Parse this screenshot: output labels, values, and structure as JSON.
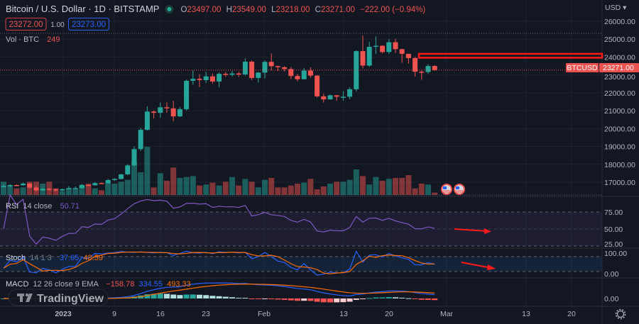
{
  "header": {
    "symbol_title": "Bitcoin / U.S. Dollar · 1D · BITSTAMP",
    "ohlc": {
      "o_label": "O",
      "o": "23497.00",
      "h_label": "H",
      "h": "23549.00",
      "l_label": "L",
      "l": "23218.00",
      "c_label": "C",
      "c": "23271.00",
      "change": "−222.00 (−0.94%)"
    },
    "sell_price": "23272.00",
    "spread": "1.00",
    "buy_price": "23273.00",
    "volume_label": "Vol · BTC",
    "volume_value": "249"
  },
  "price_axis": {
    "currency": "USD ▾",
    "ticks": [
      "26000.00",
      "25000.00",
      "24000.00",
      "23000.00",
      "22000.00",
      "21000.00",
      "20000.00",
      "19000.00",
      "18000.00",
      "17000.00"
    ],
    "symbol_tag": "BTCUSD",
    "last_price_tag": "23271.00"
  },
  "rsi": {
    "label": "RSI",
    "params": "14 close",
    "value": "50.71",
    "ticks": [
      "75.00",
      "50.00",
      "25.00"
    ]
  },
  "stoch": {
    "label": "Stoch",
    "params": "14 1 3",
    "k": "37.65",
    "d": "48.59",
    "ticks": [
      "100.00",
      "0.00"
    ]
  },
  "macd": {
    "label": "MACD",
    "params": "12 26 close 9 EMA",
    "hist": "−158.78",
    "macd": "334.55",
    "signal": "493.33",
    "ticks": [
      "0.00"
    ]
  },
  "watermark": "TradingView",
  "time_axis": [
    "2023",
    "9",
    "16",
    "23",
    "Feb",
    "13",
    "20",
    "Mar",
    "13",
    "20"
  ],
  "colors": {
    "bg": "#131722",
    "up": "#26a69a",
    "down": "#ef5350",
    "annotation": "#ff1a1a",
    "rsi": "#7e57c2",
    "stoch_k": "#2962ff",
    "stoch_d": "#ff6d00"
  },
  "chart_data": {
    "type": "candlestick",
    "start_date": "2022-12-23",
    "first_open": 16760,
    "close": [
      16780,
      16840,
      16830,
      16920,
      16700,
      16540,
      16630,
      16600,
      16540,
      16610,
      16670,
      16670,
      16850,
      16830,
      16950,
      16940,
      17120,
      17180,
      17440,
      17940,
      18850,
      19930,
      20950,
      20880,
      21190,
      21130,
      20680,
      21080,
      22670,
      22780,
      22710,
      22920,
      22630,
      23060,
      23010,
      23080,
      23030,
      23740,
      22830,
      23130,
      23730,
      23490,
      23430,
      23330,
      22940,
      22760,
      23240,
      22960,
      21800,
      21630,
      21860,
      21780,
      21780,
      22200,
      24330,
      23520,
      24570,
      24630,
      24280,
      24830,
      24440,
      24180,
      23940,
      23180,
      23160,
      23497,
      23271
    ],
    "high": [
      16870,
      16900,
      16880,
      16980,
      16960,
      16790,
      16680,
      16660,
      16640,
      16640,
      16780,
      16760,
      16900,
      16880,
      17000,
      16990,
      17180,
      17230,
      17460,
      18010,
      19000,
      20040,
      21250,
      21010,
      21450,
      21470,
      21550,
      21190,
      22740,
      23250,
      23040,
      23170,
      23080,
      23140,
      23170,
      23220,
      23180,
      23930,
      23810,
      23160,
      23800,
      24210,
      23520,
      23480,
      23440,
      23060,
      23390,
      23430,
      22990,
      21950,
      21900,
      21880,
      22080,
      22310,
      24370,
      25200,
      24850,
      25150,
      24660,
      25000,
      25020,
      24460,
      24160,
      24000,
      23250,
      23600,
      23549
    ],
    "low": [
      16740,
      16740,
      16780,
      16800,
      16650,
      16480,
      16510,
      16520,
      16480,
      16500,
      16600,
      16640,
      16640,
      16780,
      16800,
      16900,
      16900,
      17080,
      17150,
      17400,
      17880,
      18750,
      19890,
      20560,
      20610,
      20880,
      20410,
      20650,
      21000,
      22450,
      22320,
      22560,
      22520,
      22300,
      22890,
      22910,
      22890,
      22960,
      22720,
      22570,
      22810,
      23260,
      23220,
      23200,
      22770,
      22640,
      22740,
      22850,
      21740,
      21450,
      21620,
      21560,
      21560,
      21640,
      22080,
      23370,
      23440,
      24170,
      24200,
      24170,
      24220,
      23680,
      23630,
      22900,
      22730,
      23050,
      23218
    ],
    "volume": [
      1400,
      1000,
      700,
      800,
      1400,
      1400,
      1200,
      1400,
      700,
      400,
      700,
      600,
      1000,
      1200,
      700,
      500,
      1300,
      1200,
      1400,
      1600,
      3500,
      2400,
      5100,
      800,
      2300,
      1500,
      2900,
      1800,
      1900,
      2000,
      1000,
      1100,
      1300,
      1000,
      1400,
      1900,
      1000,
      1700,
      1400,
      800,
      1600,
      1800,
      800,
      800,
      1000,
      1200,
      1300,
      1700,
      600,
      900,
      1200,
      1400,
      1400,
      1600,
      2700,
      2000,
      1100,
      1900,
      1500,
      1700,
      1800,
      1800,
      2100,
      700,
      1200,
      1100,
      249
    ],
    "ylim": [
      16500,
      26300
    ],
    "annotation_zone": [
      23960,
      24180
    ]
  }
}
